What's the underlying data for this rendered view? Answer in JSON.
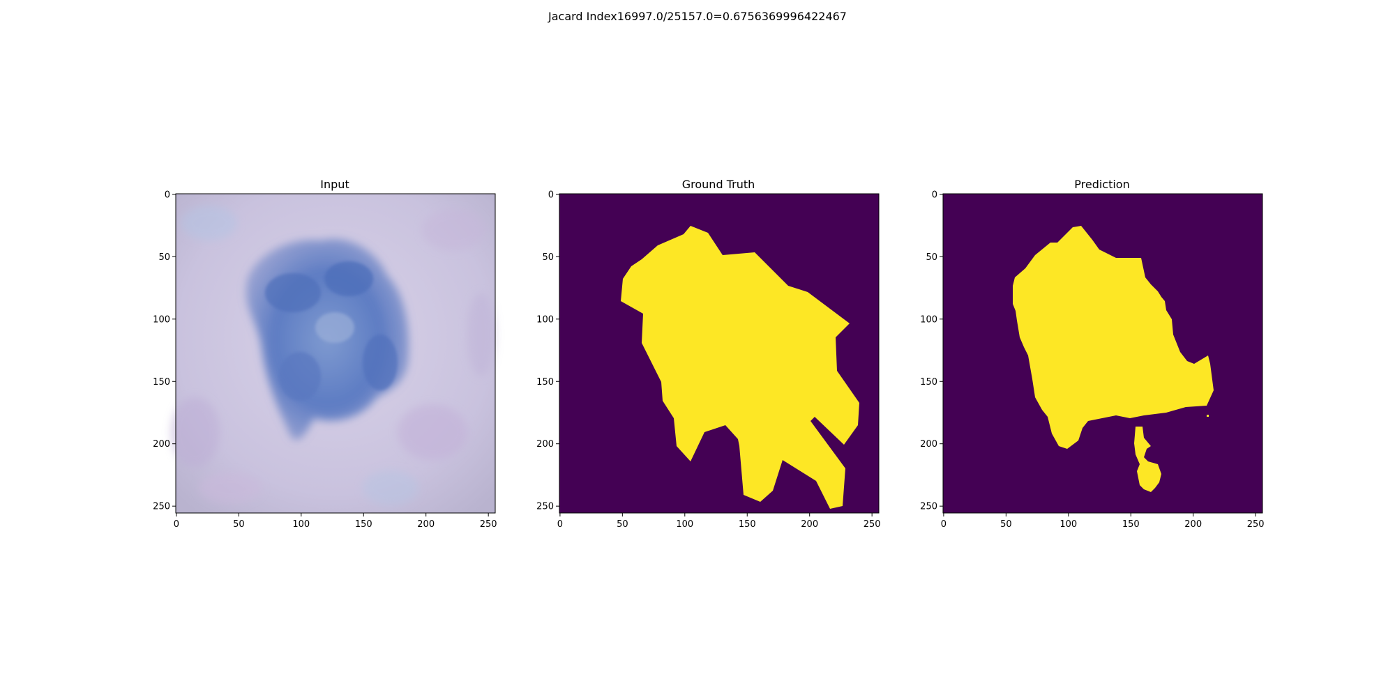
{
  "figure": {
    "suptitle": "Jacard Index16997.0/25157.0=0.6756369996422467"
  },
  "panels": [
    {
      "title": "Input"
    },
    {
      "title": "Ground Truth"
    },
    {
      "title": "Prediction"
    }
  ],
  "axes": {
    "xticks": [
      "0",
      "50",
      "100",
      "150",
      "200",
      "250"
    ],
    "yticks": [
      "0",
      "50",
      "100",
      "150",
      "200",
      "250"
    ],
    "range": [
      0,
      255
    ]
  },
  "colors": {
    "mask_background": "#440154",
    "mask_foreground": "#fde725",
    "skin_base": "#cfc8e2",
    "lesion": "#5b7cc4"
  }
}
